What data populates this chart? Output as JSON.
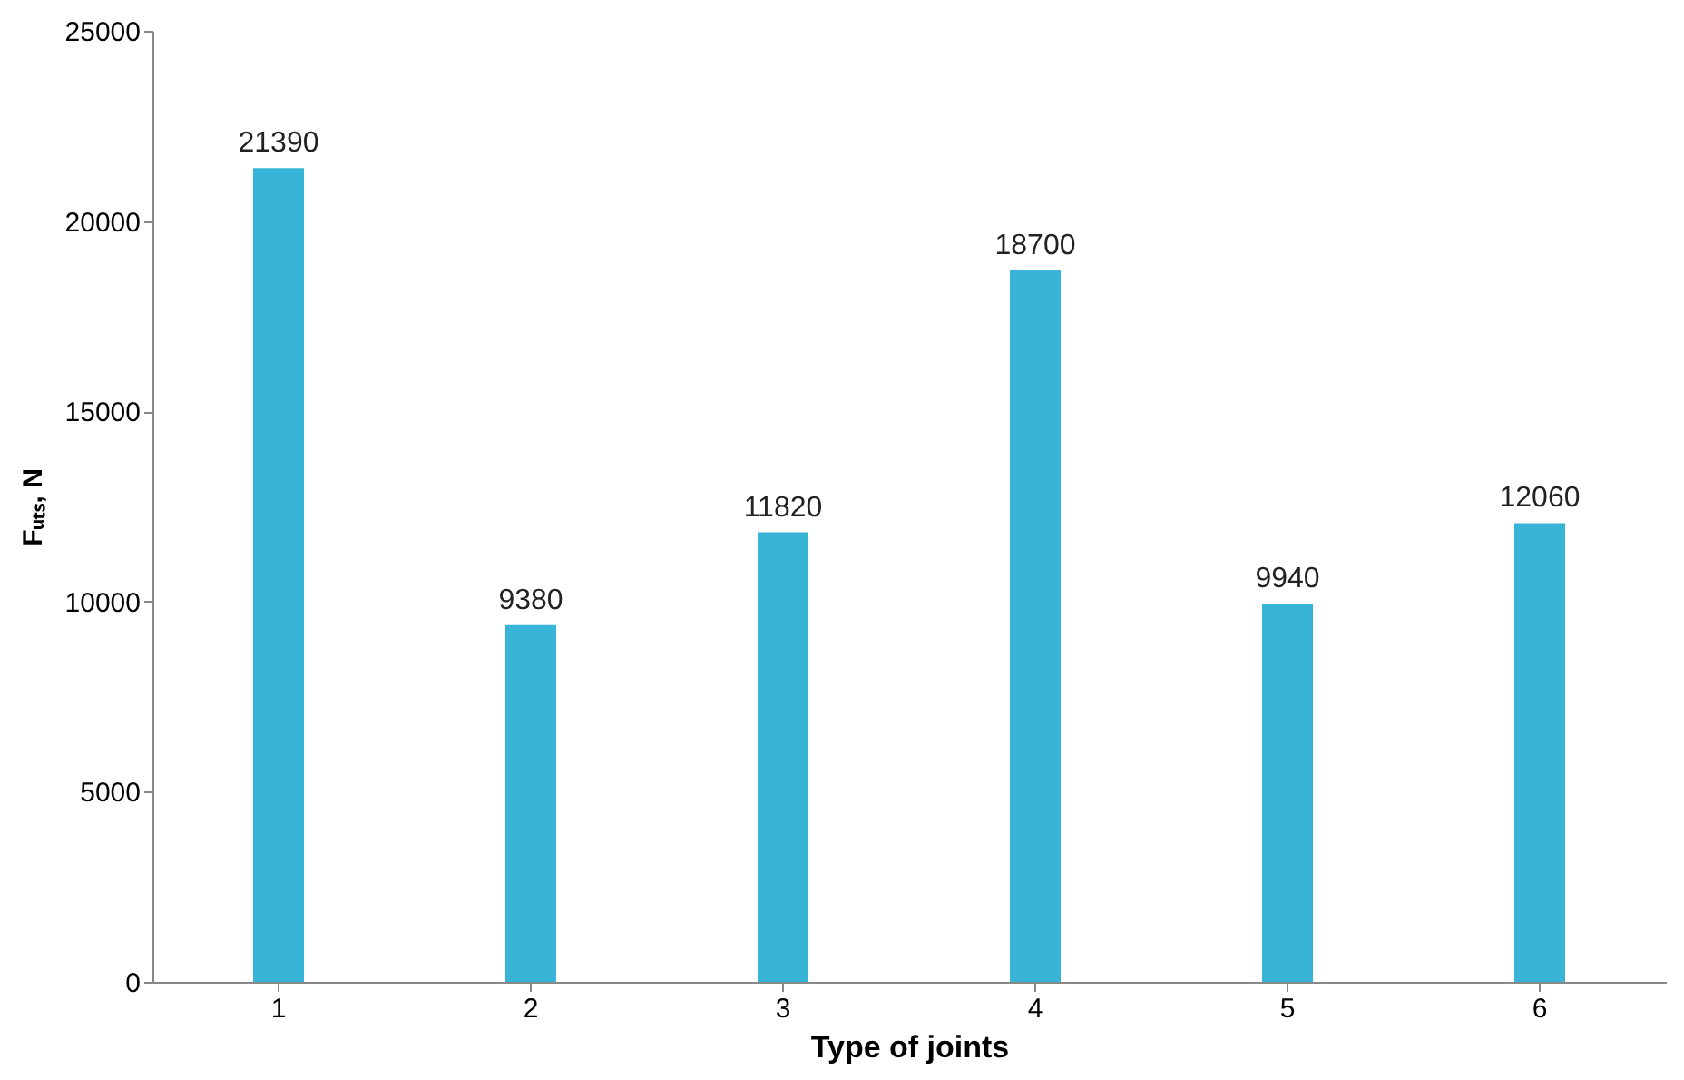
{
  "chart_data": {
    "type": "bar",
    "xlabel": "Type of joints",
    "ylabel": "Fᵤₜₛ, N",
    "categories": [
      "1",
      "2",
      "3",
      "4",
      "5",
      "6"
    ],
    "values": [
      21390,
      9380,
      11820,
      18700,
      9940,
      12060
    ],
    "color": "#38b4d6",
    "ylim": [
      0,
      25000
    ],
    "yticks": [
      0,
      5000,
      10000,
      15000,
      20000,
      25000
    ],
    "data_labels": true,
    "grid": false
  }
}
